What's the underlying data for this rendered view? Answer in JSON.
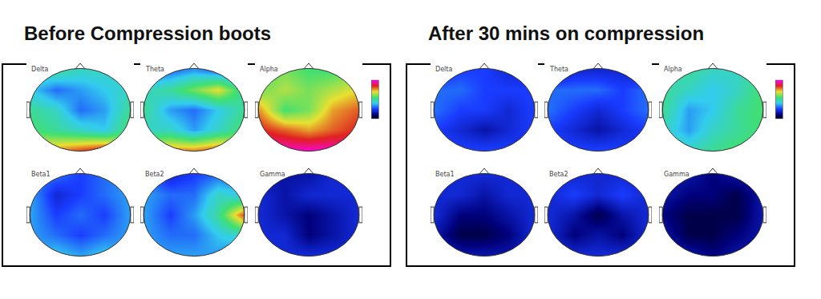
{
  "chart_data": [
    {
      "type": "heatmap",
      "title": "Before Compression boots",
      "zlim": [
        0,
        1
      ],
      "tick_labels": false,
      "maps": [
        {
          "label": "Delta",
          "cells": [
            [
              0.45,
              0.5,
              0.45,
              0.45,
              0.4
            ],
            [
              0.4,
              0.3,
              0.35,
              0.4,
              0.45
            ],
            [
              0.5,
              0.45,
              0.3,
              0.35,
              0.5
            ],
            [
              0.55,
              0.5,
              0.45,
              0.4,
              0.55
            ],
            [
              0.7,
              0.75,
              0.8,
              0.85,
              0.7
            ]
          ]
        },
        {
          "label": "Theta",
          "cells": [
            [
              0.3,
              0.3,
              0.35,
              0.3,
              0.3
            ],
            [
              0.45,
              0.5,
              0.6,
              0.7,
              0.5
            ],
            [
              0.5,
              0.35,
              0.3,
              0.4,
              0.5
            ],
            [
              0.45,
              0.45,
              0.35,
              0.45,
              0.55
            ],
            [
              0.7,
              0.75,
              0.75,
              0.8,
              0.7
            ]
          ]
        },
        {
          "label": "Alpha",
          "cells": [
            [
              0.55,
              0.6,
              0.55,
              0.55,
              0.6
            ],
            [
              0.6,
              0.65,
              0.6,
              0.65,
              0.7
            ],
            [
              0.75,
              0.55,
              0.6,
              0.75,
              0.8
            ],
            [
              0.85,
              0.8,
              0.75,
              0.8,
              0.85
            ],
            [
              0.95,
              0.95,
              0.95,
              0.95,
              0.9
            ]
          ]
        },
        {
          "label": "Beta1",
          "cells": [
            [
              0.3,
              0.3,
              0.25,
              0.3,
              0.35
            ],
            [
              0.35,
              0.2,
              0.25,
              0.3,
              0.35
            ],
            [
              0.35,
              0.25,
              0.3,
              0.25,
              0.35
            ],
            [
              0.35,
              0.3,
              0.25,
              0.3,
              0.35
            ],
            [
              0.35,
              0.4,
              0.35,
              0.4,
              0.35
            ]
          ]
        },
        {
          "label": "Beta2",
          "cells": [
            [
              0.3,
              0.2,
              0.25,
              0.3,
              0.3
            ],
            [
              0.35,
              0.3,
              0.3,
              0.45,
              0.4
            ],
            [
              0.35,
              0.25,
              0.35,
              0.5,
              0.8
            ],
            [
              0.35,
              0.3,
              0.3,
              0.4,
              0.45
            ],
            [
              0.35,
              0.35,
              0.35,
              0.35,
              0.3
            ]
          ]
        },
        {
          "label": "Gamma",
          "cells": [
            [
              0.15,
              0.15,
              0.15,
              0.2,
              0.2
            ],
            [
              0.2,
              0.15,
              0.2,
              0.2,
              0.2
            ],
            [
              0.2,
              0.15,
              0.1,
              0.15,
              0.2
            ],
            [
              0.2,
              0.2,
              0.1,
              0.15,
              0.2
            ],
            [
              0.2,
              0.2,
              0.2,
              0.2,
              0.2
            ]
          ]
        }
      ]
    },
    {
      "type": "heatmap",
      "title": "After 30 mins on compression",
      "zlim": [
        0,
        1
      ],
      "tick_labels": false,
      "maps": [
        {
          "label": "Delta",
          "cells": [
            [
              0.2,
              0.25,
              0.25,
              0.2,
              0.2
            ],
            [
              0.3,
              0.3,
              0.25,
              0.25,
              0.25
            ],
            [
              0.3,
              0.25,
              0.25,
              0.2,
              0.25
            ],
            [
              0.25,
              0.2,
              0.15,
              0.2,
              0.25
            ],
            [
              0.25,
              0.25,
              0.25,
              0.25,
              0.2
            ]
          ]
        },
        {
          "label": "Theta",
          "cells": [
            [
              0.15,
              0.2,
              0.2,
              0.2,
              0.15
            ],
            [
              0.3,
              0.3,
              0.3,
              0.25,
              0.3
            ],
            [
              0.3,
              0.25,
              0.2,
              0.25,
              0.3
            ],
            [
              0.25,
              0.2,
              0.15,
              0.2,
              0.25
            ],
            [
              0.25,
              0.25,
              0.25,
              0.25,
              0.2
            ]
          ]
        },
        {
          "label": "Alpha",
          "cells": [
            [
              0.45,
              0.5,
              0.45,
              0.45,
              0.5
            ],
            [
              0.5,
              0.45,
              0.4,
              0.45,
              0.55
            ],
            [
              0.5,
              0.35,
              0.4,
              0.5,
              0.55
            ],
            [
              0.45,
              0.35,
              0.45,
              0.5,
              0.55
            ],
            [
              0.5,
              0.45,
              0.5,
              0.55,
              0.55
            ]
          ]
        },
        {
          "label": "Beta1",
          "cells": [
            [
              0.2,
              0.2,
              0.2,
              0.2,
              0.2
            ],
            [
              0.2,
              0.2,
              0.15,
              0.2,
              0.2
            ],
            [
              0.2,
              0.1,
              0.1,
              0.15,
              0.2
            ],
            [
              0.15,
              0.05,
              0.05,
              0.1,
              0.2
            ],
            [
              0.2,
              0.15,
              0.15,
              0.15,
              0.2
            ]
          ]
        },
        {
          "label": "Beta2",
          "cells": [
            [
              0.2,
              0.2,
              0.2,
              0.2,
              0.2
            ],
            [
              0.2,
              0.25,
              0.2,
              0.25,
              0.2
            ],
            [
              0.2,
              0.15,
              0.05,
              0.15,
              0.2
            ],
            [
              0.2,
              0.1,
              0.15,
              0.1,
              0.2
            ],
            [
              0.2,
              0.2,
              0.2,
              0.2,
              0.2
            ]
          ]
        },
        {
          "label": "Gamma",
          "cells": [
            [
              0.15,
              0.15,
              0.1,
              0.15,
              0.15
            ],
            [
              0.15,
              0.1,
              0.1,
              0.05,
              0.15
            ],
            [
              0.1,
              0.05,
              0.05,
              0.05,
              0.15
            ],
            [
              0.15,
              0.05,
              0.05,
              0.1,
              0.15
            ],
            [
              0.15,
              0.15,
              0.1,
              0.15,
              0.15
            ]
          ]
        }
      ]
    }
  ]
}
